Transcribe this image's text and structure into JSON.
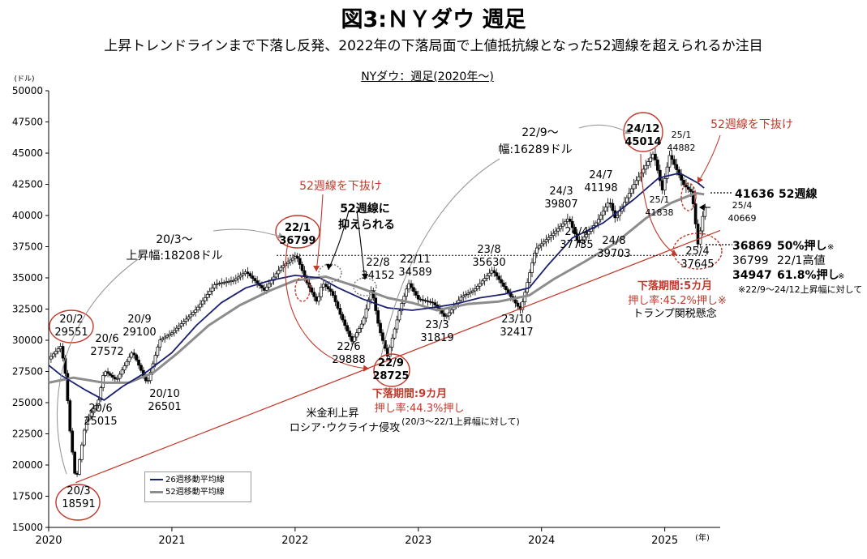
{
  "title": "図3:ＮＹダウ 週足",
  "subtitle": "上昇トレンドラインまで下落し反発、2022年の下落局面で上値抵抗線となった52週線を超えられるか注目",
  "chart_data": {
    "type": "candlestick",
    "title": "NYダウ：週足(2020年～)",
    "y_unit": "(ドル)",
    "x_unit": "(年)",
    "ylim": [
      15000,
      50000
    ],
    "xlim": [
      2020.0,
      2025.45
    ],
    "y_ticks": [
      15000,
      17500,
      20000,
      22500,
      25000,
      27500,
      30000,
      32500,
      35000,
      37500,
      40000,
      42500,
      45000,
      47500,
      50000
    ],
    "x_ticks": [
      "2020",
      "2021",
      "2022",
      "2023",
      "2024",
      "2025"
    ],
    "price_path": [
      [
        2020.0,
        28500
      ],
      [
        2020.1,
        29551
      ],
      [
        2020.14,
        27000
      ],
      [
        2020.17,
        23000
      ],
      [
        2020.22,
        18591
      ],
      [
        2020.3,
        23500
      ],
      [
        2020.4,
        25015
      ],
      [
        2020.45,
        27572
      ],
      [
        2020.55,
        26800
      ],
      [
        2020.68,
        29100
      ],
      [
        2020.8,
        26501
      ],
      [
        2020.9,
        30000
      ],
      [
        2021.0,
        30600
      ],
      [
        2021.2,
        32500
      ],
      [
        2021.35,
        34500
      ],
      [
        2021.5,
        34800
      ],
      [
        2021.6,
        35500
      ],
      [
        2021.75,
        34000
      ],
      [
        2021.88,
        35800
      ],
      [
        2022.01,
        36799
      ],
      [
        2022.1,
        34500
      ],
      [
        2022.18,
        33000
      ],
      [
        2022.22,
        34600
      ],
      [
        2022.3,
        33800
      ],
      [
        2022.36,
        32200
      ],
      [
        2022.46,
        29888
      ],
      [
        2022.55,
        31500
      ],
      [
        2022.62,
        34152
      ],
      [
        2022.68,
        31000
      ],
      [
        2022.75,
        28725
      ],
      [
        2022.85,
        32500
      ],
      [
        2022.92,
        34589
      ],
      [
        2023.0,
        33300
      ],
      [
        2023.12,
        33000
      ],
      [
        2023.22,
        31819
      ],
      [
        2023.35,
        33500
      ],
      [
        2023.45,
        34000
      ],
      [
        2023.6,
        35630
      ],
      [
        2023.75,
        33500
      ],
      [
        2023.83,
        32417
      ],
      [
        2023.95,
        37300
      ],
      [
        2024.1,
        38600
      ],
      [
        2024.22,
        39807
      ],
      [
        2024.3,
        37735
      ],
      [
        2024.45,
        39500
      ],
      [
        2024.55,
        41198
      ],
      [
        2024.6,
        39703
      ],
      [
        2024.75,
        42500
      ],
      [
        2024.91,
        45014
      ],
      [
        2024.98,
        42000
      ],
      [
        2025.04,
        44882
      ],
      [
        2025.15,
        42500
      ],
      [
        2025.22,
        41838
      ],
      [
        2025.27,
        37645
      ],
      [
        2025.32,
        40669
      ]
    ],
    "ma_26_path": [
      [
        2020.0,
        28000
      ],
      [
        2020.1,
        27200
      ],
      [
        2020.3,
        26000
      ],
      [
        2020.45,
        25200
      ],
      [
        2020.6,
        26300
      ],
      [
        2020.8,
        27500
      ],
      [
        2021.0,
        29000
      ],
      [
        2021.2,
        31200
      ],
      [
        2021.4,
        33000
      ],
      [
        2021.6,
        34200
      ],
      [
        2021.8,
        34800
      ],
      [
        2022.0,
        35200
      ],
      [
        2022.2,
        35000
      ],
      [
        2022.35,
        34200
      ],
      [
        2022.55,
        33300
      ],
      [
        2022.75,
        32600
      ],
      [
        2022.95,
        32400
      ],
      [
        2023.1,
        32600
      ],
      [
        2023.3,
        32900
      ],
      [
        2023.5,
        33400
      ],
      [
        2023.7,
        33700
      ],
      [
        2023.9,
        34200
      ],
      [
        2024.05,
        36000
      ],
      [
        2024.25,
        38200
      ],
      [
        2024.5,
        39400
      ],
      [
        2024.75,
        41300
      ],
      [
        2024.95,
        43000
      ],
      [
        2025.12,
        43400
      ],
      [
        2025.27,
        42600
      ],
      [
        2025.32,
        42200
      ]
    ],
    "ma_52_path": [
      [
        2020.0,
        26600
      ],
      [
        2020.2,
        27000
      ],
      [
        2020.45,
        26600
      ],
      [
        2020.65,
        26600
      ],
      [
        2020.85,
        27400
      ],
      [
        2021.05,
        29000
      ],
      [
        2021.3,
        31200
      ],
      [
        2021.55,
        32800
      ],
      [
        2021.8,
        34000
      ],
      [
        2022.0,
        34800
      ],
      [
        2022.25,
        35100
      ],
      [
        2022.5,
        34300
      ],
      [
        2022.75,
        33400
      ],
      [
        2022.95,
        33000
      ],
      [
        2023.15,
        32400
      ],
      [
        2023.4,
        32900
      ],
      [
        2023.65,
        33100
      ],
      [
        2023.9,
        33600
      ],
      [
        2024.1,
        34900
      ],
      [
        2024.35,
        36300
      ],
      [
        2024.6,
        37800
      ],
      [
        2024.85,
        39800
      ],
      [
        2025.05,
        41000
      ],
      [
        2025.25,
        41800
      ],
      [
        2025.32,
        41700
      ]
    ],
    "trendline": [
      [
        2020.22,
        18591
      ],
      [
        2025.45,
        38800
      ]
    ],
    "hlines": [
      {
        "y": 36799,
        "x_from": 2021.85,
        "x_to": 2025.35
      },
      {
        "y": 34947,
        "x_from": 2025.1,
        "x_to": 2025.35
      }
    ],
    "series": [
      {
        "name": "26週移動平均線",
        "color": "#1a1f6e"
      },
      {
        "name": "52週移動平均線",
        "color": "#8c8c8c"
      }
    ],
    "annotations": {
      "a2002": {
        "date": "20/2",
        "value": "29551"
      },
      "a2003": {
        "date": "20/3",
        "value": "18591"
      },
      "a2006": {
        "date": "20/6",
        "value": "25015"
      },
      "a2006b": {
        "date": "20/6",
        "value": "27572"
      },
      "a2009": {
        "date": "20/9",
        "value": "29100"
      },
      "a2010": {
        "date": "20/10",
        "value": "26501"
      },
      "rise1": {
        "line1": "20/3～",
        "line2": "上昇幅:18208ドル"
      },
      "a2201": {
        "date": "22/1",
        "value": "36799"
      },
      "a2206": {
        "date": "22/6",
        "value": "29888"
      },
      "a2208": {
        "date": "22/8",
        "value": "34152"
      },
      "a2209": {
        "date": "22/9",
        "value": "28725"
      },
      "a2211": {
        "date": "22/11",
        "value": "34589"
      },
      "a2303": {
        "date": "23/3",
        "value": "31819"
      },
      "a2308": {
        "date": "23/8",
        "value": "35630"
      },
      "a2310": {
        "date": "23/10",
        "value": "32417"
      },
      "a2403": {
        "date": "24/3",
        "value": "39807"
      },
      "a2404": {
        "date": "24/4",
        "value": "37735"
      },
      "a2407": {
        "date": "24/7",
        "value": "41198"
      },
      "a2408": {
        "date": "24/8",
        "value": "39703"
      },
      "a2412": {
        "date": "24/12",
        "value": "45014"
      },
      "a2501": {
        "date": "25/1",
        "value": "44882"
      },
      "a2501b": {
        "date": "25/1",
        "value": "41838"
      },
      "a2504": {
        "date": "25/4",
        "value": "40669"
      },
      "a2504b": {
        "date": "25/4",
        "value": "37645"
      },
      "rise2": {
        "line1": "22/9～",
        "line2": "幅:16289ドル"
      },
      "below52_1": "52週線を下抜け",
      "below52_2": "52週線を下抜け",
      "held52_1": "52週線に",
      "held52_2": "抑えられる",
      "drop1_period": "下落期間:9カ月",
      "drop1_rate": "押し率:44.3%押し",
      "drop1_note": "(20/3～22/1上昇幅に対して)",
      "drop1_cause1": "米金利上昇",
      "drop1_cause2": "ロシア･ウクライナ侵攻",
      "drop2_period": "下落期間:5カ月",
      "drop2_rate": "押し率:45.2%押し※",
      "drop2_cause": "トランプ関税懸念",
      "lvl_52w_val": "41636",
      "lvl_52w_lbl": "52週線",
      "lvl_50_val": "36869",
      "lvl_50_lbl": "50%押し",
      "lvl_50_mark": "※",
      "lvl_high_val": "36799",
      "lvl_high_lbl": "22/1高値",
      "lvl_618_val": "34947",
      "lvl_618_lbl": "61.8%押し",
      "lvl_618_mark": "※",
      "lvl_note": "※22/9～24/12上昇幅に対して"
    }
  }
}
